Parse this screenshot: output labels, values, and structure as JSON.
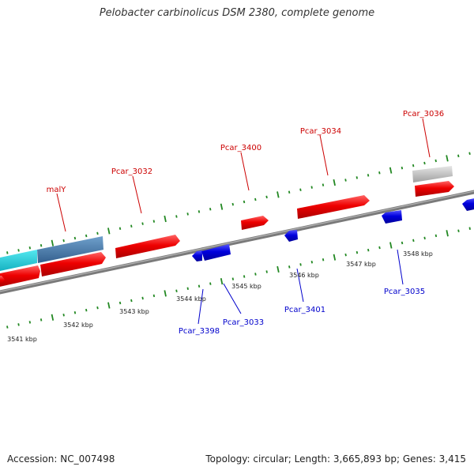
{
  "title": "Pelobacter carbinolicus DSM 2380, complete genome",
  "footer": {
    "accession": "Accession: NC_007498",
    "topology": "Topology: circular; Length: 3,665,893 bp; Genes: 3,415"
  },
  "colors": {
    "forward_gene": "#ee0000",
    "reverse_gene": "#0000dd",
    "forward_label": "#cc0000",
    "reverse_label": "#0000cc",
    "backbone": "#888888",
    "tick": "#228822",
    "selected_region": "#3399aa",
    "grey_feature": "#bbbbbb"
  },
  "forward_labels": [
    {
      "name": "malY"
    },
    {
      "name": "Pcar_3032"
    },
    {
      "name": "Pcar_3400"
    },
    {
      "name": "Pcar_3034"
    },
    {
      "name": "Pcar_3036"
    }
  ],
  "reverse_labels": [
    {
      "name": "Pcar_3398"
    },
    {
      "name": "Pcar_3033"
    },
    {
      "name": "Pcar_3401"
    },
    {
      "name": "Pcar_3035"
    }
  ],
  "kbp_ticks": [
    "3541 kbp",
    "3542 kbp",
    "3543 kbp",
    "3544 kbp",
    "3545 kbp",
    "3546 kbp",
    "3547 kbp",
    "3548 kbp"
  ]
}
